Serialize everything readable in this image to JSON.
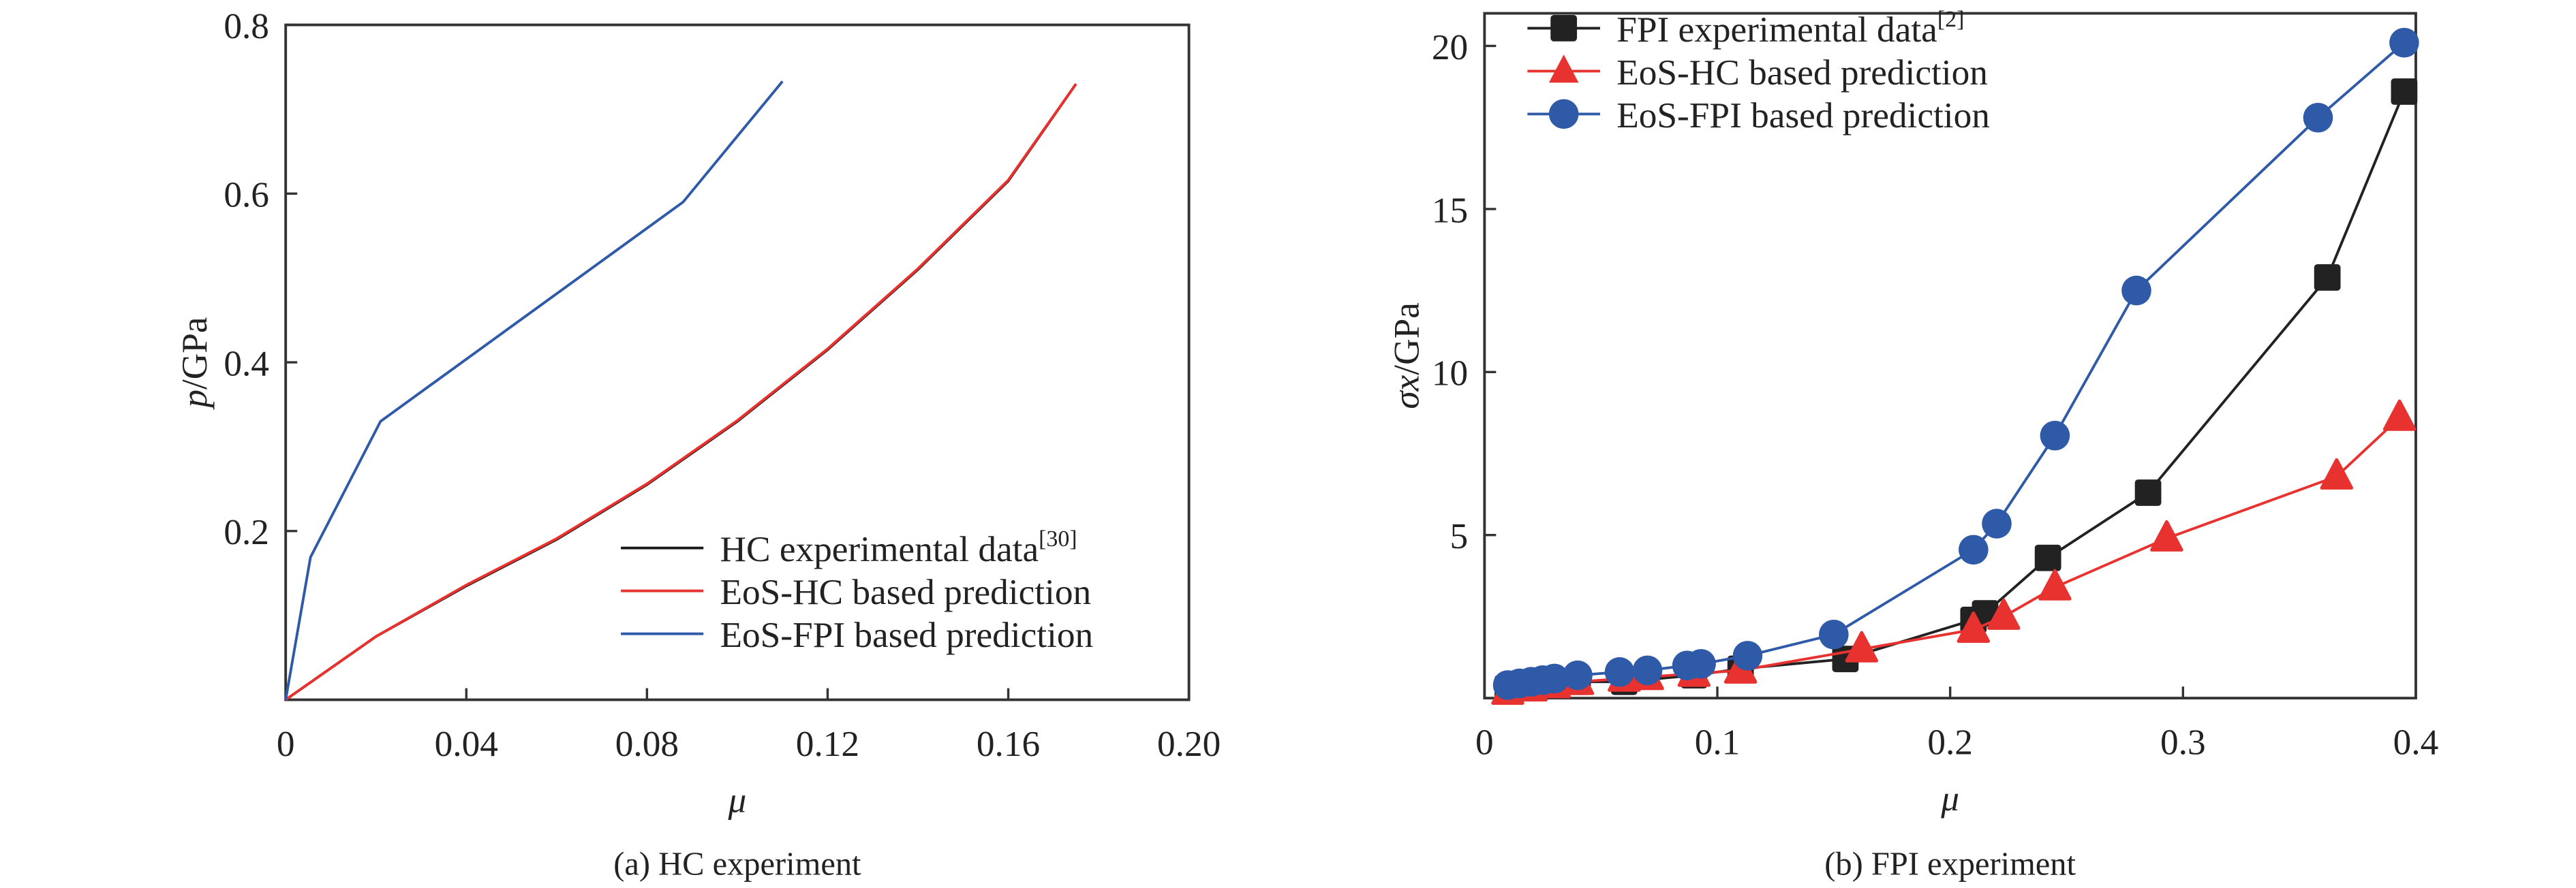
{
  "chart_data": [
    {
      "type": "line",
      "caption": "(a) HC experiment",
      "xlabel": "μ",
      "ylabel_italic": "p",
      "ylabel_rest": "/GPa",
      "xlim": [
        0,
        0.2
      ],
      "ylim": [
        0,
        0.8
      ],
      "xticks": [
        "0",
        "0.04",
        "0.08",
        "0.12",
        "0.16",
        "0.20"
      ],
      "xtick_values": [
        0,
        0.04,
        0.08,
        0.12,
        0.16,
        0.2
      ],
      "yticks": [
        "0.2",
        "0.4",
        "0.6",
        "0.8"
      ],
      "ytick_values": [
        0.2,
        0.4,
        0.6,
        0.8
      ],
      "legend_position": "bottom-right",
      "series": [
        {
          "name": "HC experimental data",
          "sup": "[30]",
          "color": "#1a1a1a",
          "x": [
            0,
            0.02,
            0.04,
            0.06,
            0.08,
            0.1,
            0.12,
            0.14,
            0.16,
            0.175
          ],
          "y": [
            0,
            0.075,
            0.135,
            0.19,
            0.255,
            0.33,
            0.415,
            0.51,
            0.615,
            0.73
          ]
        },
        {
          "name": "EoS-HC based prediction",
          "sup": "",
          "color": "#e8322f",
          "x": [
            0,
            0.02,
            0.04,
            0.06,
            0.08,
            0.1,
            0.12,
            0.14,
            0.16,
            0.175
          ],
          "y": [
            0,
            0.075,
            0.136,
            0.191,
            0.256,
            0.331,
            0.416,
            0.511,
            0.616,
            0.73
          ]
        },
        {
          "name": "EoS-FPI based prediction",
          "sup": "",
          "color": "#2f5aa8",
          "x": [
            0,
            0.0055,
            0.021,
            0.088,
            0.11
          ],
          "y": [
            0,
            0.169,
            0.33,
            0.59,
            0.733
          ]
        }
      ]
    },
    {
      "type": "line",
      "caption": "(b) FPI experiment",
      "xlabel": "μ",
      "ylabel_italic": "σx",
      "ylabel_rest": "/GPa",
      "xlim": [
        0,
        0.4
      ],
      "ylim": [
        0,
        21
      ],
      "xticks": [
        "0",
        "0.1",
        "0.2",
        "0.3",
        "0.4"
      ],
      "xtick_values": [
        0,
        0.1,
        0.2,
        0.3,
        0.4
      ],
      "yticks": [
        "5",
        "10",
        "15",
        "20"
      ],
      "ytick_values": [
        5,
        10,
        15,
        20
      ],
      "legend_position": "top-left",
      "series": [
        {
          "name": "FPI experimental data",
          "sup": "[2]",
          "color": "#222222",
          "marker": "square",
          "x": [
            0.01,
            0.02,
            0.03,
            0.04,
            0.06,
            0.09,
            0.11,
            0.155,
            0.21,
            0.215,
            0.242,
            0.285,
            0.362,
            0.395
          ],
          "y": [
            0.3,
            0.35,
            0.45,
            0.5,
            0.5,
            0.7,
            0.9,
            1.2,
            2.4,
            2.6,
            4.3,
            6.3,
            12.9,
            18.6
          ]
        },
        {
          "name": "EoS-HC based prediction",
          "sup": "",
          "color": "#e8322f",
          "marker": "triangle",
          "x": [
            0.01,
            0.02,
            0.03,
            0.04,
            0.06,
            0.07,
            0.09,
            0.11,
            0.162,
            0.21,
            0.223,
            0.245,
            0.293,
            0.366,
            0.393
          ],
          "y": [
            0.2,
            0.3,
            0.4,
            0.5,
            0.6,
            0.65,
            0.75,
            0.85,
            1.5,
            2.1,
            2.5,
            3.4,
            4.9,
            6.8,
            8.6
          ]
        },
        {
          "name": "EoS-FPI based prediction",
          "sup": "",
          "color": "#2f5aa8",
          "marker": "circle",
          "x": [
            0.01,
            0.015,
            0.02,
            0.025,
            0.03,
            0.04,
            0.058,
            0.07,
            0.087,
            0.093,
            0.113,
            0.15,
            0.21,
            0.22,
            0.245,
            0.28,
            0.358,
            0.395
          ],
          "y": [
            0.4,
            0.45,
            0.5,
            0.55,
            0.6,
            0.7,
            0.8,
            0.85,
            1.0,
            1.05,
            1.3,
            1.95,
            4.55,
            5.35,
            8.05,
            12.5,
            17.8,
            20.1
          ]
        }
      ]
    }
  ]
}
